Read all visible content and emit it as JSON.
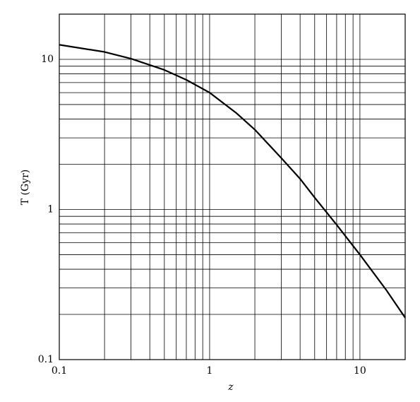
{
  "chart_data": {
    "type": "line",
    "x_label": "z",
    "y_label": "T (Gyr)",
    "log_x": true,
    "log_y": true,
    "grid": true,
    "color": "#000000",
    "xlim": [
      0.1,
      20
    ],
    "ylim": [
      0.1,
      20
    ],
    "xticks": [
      0.1,
      1,
      10
    ],
    "yticks": [
      0.1,
      1,
      10
    ],
    "xminorticks": [
      0.2,
      0.3,
      0.4,
      0.5,
      0.6,
      0.7,
      0.8,
      0.9,
      2,
      3,
      4,
      5,
      6,
      7,
      8,
      9
    ],
    "yminorticks": [
      0.2,
      0.3,
      0.4,
      0.5,
      0.6,
      0.7,
      0.8,
      0.9,
      2,
      3,
      4,
      5,
      6,
      7,
      8,
      9
    ],
    "x": [
      0.1,
      0.2,
      0.3,
      0.5,
      0.7,
      1,
      1.5,
      2,
      3,
      4,
      5,
      7,
      10,
      15,
      20
    ],
    "values": [
      12.5,
      11.2,
      10.1,
      8.5,
      7.3,
      6.0,
      4.4,
      3.4,
      2.2,
      1.6,
      1.2,
      0.79,
      0.5,
      0.29,
      0.19
    ]
  }
}
